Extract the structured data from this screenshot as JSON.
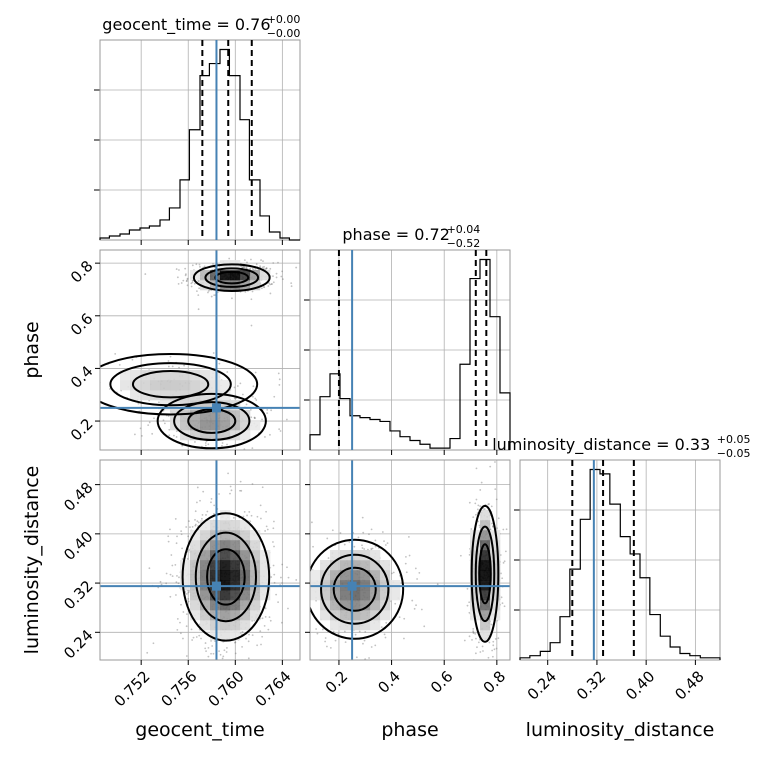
{
  "chart_data": {
    "type": "corner",
    "parameters": [
      {
        "name": "geocent_time",
        "label": "geocent_time",
        "range": [
          0.7485,
          0.7655
        ],
        "ticks": [
          "0.752",
          "0.756",
          "0.760",
          "0.764"
        ],
        "tick_values": [
          0.752,
          0.756,
          0.76,
          0.764
        ],
        "truth": 0.7584,
        "median": 0.7594,
        "q_lo": 0.7572,
        "q_hi": 0.7614
      },
      {
        "name": "phase",
        "label": "phase",
        "range": [
          0.09,
          0.85
        ],
        "ticks": [
          "0.2",
          "0.4",
          "0.6",
          "0.8"
        ],
        "tick_values": [
          0.2,
          0.4,
          0.6,
          0.8
        ],
        "truth": 0.25,
        "median": 0.72,
        "q_lo": 0.2,
        "q_hi": 0.76
      },
      {
        "name": "luminosity_distance",
        "label": "luminosity_distance",
        "range": [
          0.195,
          0.52
        ],
        "ticks": [
          "0.24",
          "0.32",
          "0.40",
          "0.48"
        ],
        "tick_values": [
          0.24,
          0.32,
          0.4,
          0.48
        ],
        "truth": 0.315,
        "median": 0.33,
        "q_lo": 0.28,
        "q_hi": 0.38
      }
    ],
    "titles": [
      {
        "prefix": "geocent_time = 0.76",
        "sup": "+0.00",
        "sub": "−0.00"
      },
      {
        "prefix": "phase = 0.72",
        "sup": "+0.04",
        "sub": "−0.52"
      },
      {
        "prefix": "luminosity_distance = 0.33",
        "sup": "+0.05",
        "sub": "−0.05"
      }
    ],
    "histograms": {
      "geocent_time": {
        "edges": [
          0.7485,
          0.7493,
          0.7502,
          0.751,
          0.7519,
          0.7527,
          0.7536,
          0.7544,
          0.7553,
          0.7561,
          0.757,
          0.7578,
          0.7587,
          0.7595,
          0.7604,
          0.7612,
          0.7621,
          0.7629,
          0.7638,
          0.7646,
          0.7655
        ],
        "counts": [
          1,
          2,
          3,
          5,
          6,
          7,
          10,
          16,
          30,
          55,
          82,
          88,
          95,
          82,
          60,
          30,
          12,
          4,
          1,
          0
        ]
      },
      "phase": {
        "edges": [
          0.09,
          0.128,
          0.166,
          0.204,
          0.242,
          0.28,
          0.318,
          0.356,
          0.394,
          0.432,
          0.47,
          0.508,
          0.546,
          0.584,
          0.622,
          0.66,
          0.698,
          0.736,
          0.774,
          0.812,
          0.85
        ],
        "counts": [
          8,
          28,
          40,
          27,
          18,
          17,
          16,
          15,
          10,
          7,
          5,
          3,
          1,
          1,
          6,
          45,
          90,
          100,
          70,
          30
        ]
      },
      "luminosity_distance": {
        "edges": [
          0.195,
          0.211,
          0.228,
          0.244,
          0.26,
          0.276,
          0.293,
          0.309,
          0.325,
          0.341,
          0.358,
          0.374,
          0.39,
          0.406,
          0.423,
          0.439,
          0.455,
          0.471,
          0.488,
          0.504,
          0.52
        ],
        "counts": [
          1,
          2,
          4,
          8,
          20,
          42,
          65,
          88,
          86,
          72,
          57,
          49,
          38,
          21,
          11,
          6,
          3,
          2,
          1,
          1
        ]
      }
    },
    "joint_modes": {
      "phase_vs_geocent_time": [
        {
          "x": 0.7597,
          "y": 0.745,
          "sx": 0.0014,
          "sy": 0.022,
          "w": 0.62
        },
        {
          "x": 0.758,
          "y": 0.2,
          "sx": 0.002,
          "sy": 0.045,
          "w": 0.26
        },
        {
          "x": 0.7545,
          "y": 0.34,
          "sx": 0.0032,
          "sy": 0.05,
          "w": 0.12
        }
      ],
      "luminosity_distance_vs_geocent_time": [
        {
          "x": 0.7592,
          "y": 0.33,
          "sx": 0.0016,
          "sy": 0.045,
          "w": 1.0
        }
      ],
      "luminosity_distance_vs_phase": [
        {
          "x": 0.755,
          "y": 0.335,
          "sx": 0.022,
          "sy": 0.048,
          "w": 0.62
        },
        {
          "x": 0.26,
          "y": 0.31,
          "sx": 0.08,
          "sy": 0.035,
          "w": 0.38
        }
      ]
    },
    "grid": true
  }
}
